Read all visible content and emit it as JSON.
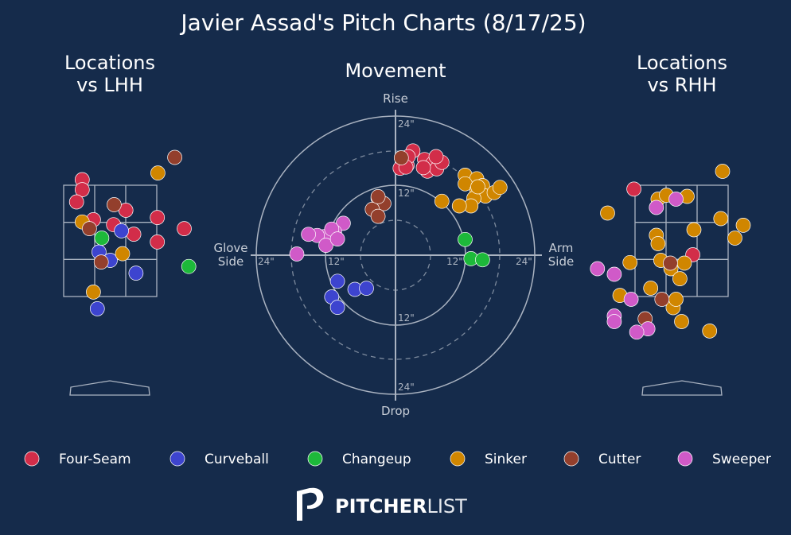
{
  "title": "Javier Assad's Pitch Charts (8/17/25)",
  "panels": {
    "lhh_title_line1": "Locations",
    "lhh_title_line2": "vs LHH",
    "movement_title": "Movement",
    "rhh_title_line1": "Locations",
    "rhh_title_line2": "vs RHH"
  },
  "movement_axes": {
    "top": "Rise",
    "bottom": "Drop",
    "left_line1": "Glove",
    "left_line2": "Side",
    "right_line1": "Arm",
    "right_line2": "Side",
    "ring_labels": [
      "24\"",
      "12\"",
      "12\"",
      "24\"",
      "24\"",
      "12\"",
      "12\"",
      "24\""
    ]
  },
  "brand": {
    "bold": "PITCHER",
    "light": "LIST"
  },
  "colors": {
    "background": "#152b4b",
    "Four-Seam": "#d22d49",
    "Curveball": "#3d44cf",
    "Changeup": "#1db93a",
    "Sinker": "#d08600",
    "Cutter": "#933f2c",
    "Sweeper": "#d05ac8"
  },
  "chart_data": [
    {
      "type": "scatter",
      "title": "Locations vs LHH",
      "units": "feet (catcher view)",
      "xlim": [
        -2.5,
        2.5
      ],
      "ylim": [
        -0.6,
        5.0
      ],
      "strike_zone": {
        "x": [
          -0.83,
          0.83
        ],
        "y": [
          1.5,
          3.5
        ]
      },
      "points": [
        {
          "pitch": "Four-Seam",
          "x": -0.5,
          "y": 3.6
        },
        {
          "pitch": "Four-Seam",
          "x": -0.5,
          "y": 3.42
        },
        {
          "pitch": "Four-Seam",
          "x": -0.6,
          "y": 3.2
        },
        {
          "pitch": "Four-Seam",
          "x": -0.3,
          "y": 2.88
        },
        {
          "pitch": "Four-Seam",
          "x": 0.28,
          "y": 3.05
        },
        {
          "pitch": "Four-Seam",
          "x": 0.06,
          "y": 2.79
        },
        {
          "pitch": "Four-Seam",
          "x": 0.42,
          "y": 2.62
        },
        {
          "pitch": "Four-Seam",
          "x": 0.84,
          "y": 2.92
        },
        {
          "pitch": "Four-Seam",
          "x": 0.84,
          "y": 2.48
        },
        {
          "pitch": "Four-Seam",
          "x": 1.32,
          "y": 2.72
        },
        {
          "pitch": "Curveball",
          "x": 0.2,
          "y": 2.68
        },
        {
          "pitch": "Curveball",
          "x": -0.2,
          "y": 2.3
        },
        {
          "pitch": "Curveball",
          "x": 0.0,
          "y": 2.15
        },
        {
          "pitch": "Curveball",
          "x": 0.46,
          "y": 1.92
        },
        {
          "pitch": "Curveball",
          "x": -0.23,
          "y": 1.28
        },
        {
          "pitch": "Changeup",
          "x": -0.15,
          "y": 2.55
        },
        {
          "pitch": "Changeup",
          "x": 1.4,
          "y": 2.04
        },
        {
          "pitch": "Sinker",
          "x": 0.85,
          "y": 3.72
        },
        {
          "pitch": "Sinker",
          "x": -0.5,
          "y": 2.84
        },
        {
          "pitch": "Sinker",
          "x": 0.22,
          "y": 2.27
        },
        {
          "pitch": "Sinker",
          "x": -0.3,
          "y": 1.58
        },
        {
          "pitch": "Cutter",
          "x": 1.15,
          "y": 4.0
        },
        {
          "pitch": "Cutter",
          "x": 0.07,
          "y": 3.15
        },
        {
          "pitch": "Cutter",
          "x": -0.37,
          "y": 2.72
        },
        {
          "pitch": "Cutter",
          "x": -0.16,
          "y": 2.12
        }
      ]
    },
    {
      "type": "scatter",
      "title": "Movement",
      "units": "inches",
      "xlim": [
        -24,
        24
      ],
      "ylim": [
        -24,
        24
      ],
      "rings": [
        6,
        12,
        18,
        24
      ],
      "points": [
        {
          "pitch": "Four-Seam",
          "x": 3,
          "y": 18
        },
        {
          "pitch": "Four-Seam",
          "x": 2,
          "y": 15.5
        },
        {
          "pitch": "Four-Seam",
          "x": 0.8,
          "y": 15
        },
        {
          "pitch": "Four-Seam",
          "x": 2.2,
          "y": 17
        },
        {
          "pitch": "Four-Seam",
          "x": 5,
          "y": 16.5
        },
        {
          "pitch": "Four-Seam",
          "x": 5.5,
          "y": 14.5
        },
        {
          "pitch": "Four-Seam",
          "x": 6.4,
          "y": 15.8
        },
        {
          "pitch": "Four-Seam",
          "x": 7.1,
          "y": 14.9
        },
        {
          "pitch": "Four-Seam",
          "x": 8,
          "y": 16
        },
        {
          "pitch": "Four-Seam",
          "x": 4.8,
          "y": 15.1
        },
        {
          "pitch": "Four-Seam",
          "x": 7,
          "y": 17
        },
        {
          "pitch": "Four-Seam",
          "x": 1.8,
          "y": 15.2
        },
        {
          "pitch": "Curveball",
          "x": -10,
          "y": -4.5
        },
        {
          "pitch": "Curveball",
          "x": -11,
          "y": -7.2
        },
        {
          "pitch": "Curveball",
          "x": -10,
          "y": -9
        },
        {
          "pitch": "Curveball",
          "x": -7,
          "y": -5.9
        },
        {
          "pitch": "Curveball",
          "x": -5,
          "y": -5.7
        },
        {
          "pitch": "Changeup",
          "x": 12,
          "y": 2.7
        },
        {
          "pitch": "Changeup",
          "x": 13,
          "y": -0.6
        },
        {
          "pitch": "Changeup",
          "x": 15,
          "y": -0.8
        },
        {
          "pitch": "Sinker",
          "x": 12,
          "y": 13.8
        },
        {
          "pitch": "Sinker",
          "x": 14,
          "y": 13.2
        },
        {
          "pitch": "Sinker",
          "x": 15,
          "y": 12
        },
        {
          "pitch": "Sinker",
          "x": 12,
          "y": 12.3
        },
        {
          "pitch": "Sinker",
          "x": 14,
          "y": 11.2
        },
        {
          "pitch": "Sinker",
          "x": 15.5,
          "y": 10.2
        },
        {
          "pitch": "Sinker",
          "x": 13.5,
          "y": 9.8
        },
        {
          "pitch": "Sinker",
          "x": 17,
          "y": 10.8
        },
        {
          "pitch": "Sinker",
          "x": 18,
          "y": 11.7
        },
        {
          "pitch": "Sinker",
          "x": 13,
          "y": 8.5
        },
        {
          "pitch": "Sinker",
          "x": 11,
          "y": 8.5
        },
        {
          "pitch": "Sinker",
          "x": 8,
          "y": 9.3
        },
        {
          "pitch": "Sinker",
          "x": 14.2,
          "y": 11.8
        },
        {
          "pitch": "Cutter",
          "x": 1,
          "y": 16.8
        },
        {
          "pitch": "Cutter",
          "x": -3,
          "y": 9.8
        },
        {
          "pitch": "Cutter",
          "x": -2,
          "y": 8.9
        },
        {
          "pitch": "Cutter",
          "x": -4,
          "y": 7.9
        },
        {
          "pitch": "Cutter",
          "x": -3,
          "y": 6.7
        },
        {
          "pitch": "Cutter",
          "x": -3,
          "y": 10.1
        },
        {
          "pitch": "Sweeper",
          "x": -9,
          "y": 5.5
        },
        {
          "pitch": "Sweeper",
          "x": -10.5,
          "y": 4
        },
        {
          "pitch": "Sweeper",
          "x": -11.4,
          "y": 3.5
        },
        {
          "pitch": "Sweeper",
          "x": -12.3,
          "y": 3.2
        },
        {
          "pitch": "Sweeper",
          "x": -13.5,
          "y": 3.4
        },
        {
          "pitch": "Sweeper",
          "x": -15,
          "y": 3.6
        },
        {
          "pitch": "Sweeper",
          "x": -11,
          "y": 4.5
        },
        {
          "pitch": "Sweeper",
          "x": -12,
          "y": 1.7
        },
        {
          "pitch": "Sweeper",
          "x": -10,
          "y": 2.8
        },
        {
          "pitch": "Sweeper",
          "x": -17,
          "y": 0.2
        }
      ]
    },
    {
      "type": "scatter",
      "title": "Locations vs RHH",
      "units": "feet (catcher view)",
      "xlim": [
        -2.5,
        2.5
      ],
      "ylim": [
        -0.6,
        5.0
      ],
      "strike_zone": {
        "x": [
          -0.83,
          0.83
        ],
        "y": [
          1.5,
          3.5
        ]
      },
      "points": [
        {
          "pitch": "Four-Seam",
          "x": -0.85,
          "y": 3.43
        },
        {
          "pitch": "Four-Seam",
          "x": 0.2,
          "y": 2.25
        },
        {
          "pitch": "Sinker",
          "x": 0.73,
          "y": 3.75
        },
        {
          "pitch": "Sinker",
          "x": -1.32,
          "y": 3.0
        },
        {
          "pitch": "Sinker",
          "x": -0.42,
          "y": 3.25
        },
        {
          "pitch": "Sinker",
          "x": -0.27,
          "y": 3.32
        },
        {
          "pitch": "Sinker",
          "x": 0.1,
          "y": 3.3
        },
        {
          "pitch": "Sinker",
          "x": 0.22,
          "y": 2.7
        },
        {
          "pitch": "Sinker",
          "x": 0.7,
          "y": 2.9
        },
        {
          "pitch": "Sinker",
          "x": 0.95,
          "y": 2.55
        },
        {
          "pitch": "Sinker",
          "x": 1.1,
          "y": 2.78
        },
        {
          "pitch": "Sinker",
          "x": -0.45,
          "y": 2.6
        },
        {
          "pitch": "Sinker",
          "x": -0.42,
          "y": 2.45
        },
        {
          "pitch": "Sinker",
          "x": -0.92,
          "y": 2.11
        },
        {
          "pitch": "Sinker",
          "x": -0.37,
          "y": 2.15
        },
        {
          "pitch": "Sinker",
          "x": -0.19,
          "y": 2.0
        },
        {
          "pitch": "Sinker",
          "x": 0.05,
          "y": 2.1
        },
        {
          "pitch": "Sinker",
          "x": -0.03,
          "y": 1.82
        },
        {
          "pitch": "Sinker",
          "x": -0.55,
          "y": 1.65
        },
        {
          "pitch": "Sinker",
          "x": -0.15,
          "y": 1.3
        },
        {
          "pitch": "Sinker",
          "x": -1.1,
          "y": 1.52
        },
        {
          "pitch": "Sinker",
          "x": -0.1,
          "y": 1.45
        },
        {
          "pitch": "Sinker",
          "x": 0.0,
          "y": 1.05
        },
        {
          "pitch": "Sinker",
          "x": 0.5,
          "y": 0.88
        },
        {
          "pitch": "Cutter",
          "x": -0.2,
          "y": 2.1
        },
        {
          "pitch": "Cutter",
          "x": -0.35,
          "y": 1.45
        },
        {
          "pitch": "Cutter",
          "x": -0.65,
          "y": 1.1
        },
        {
          "pitch": "Sweeper",
          "x": -0.45,
          "y": 3.1
        },
        {
          "pitch": "Sweeper",
          "x": -0.1,
          "y": 3.25
        },
        {
          "pitch": "Sweeper",
          "x": -1.5,
          "y": 2.0
        },
        {
          "pitch": "Sweeper",
          "x": -1.2,
          "y": 1.9
        },
        {
          "pitch": "Sweeper",
          "x": -0.9,
          "y": 1.45
        },
        {
          "pitch": "Sweeper",
          "x": -1.2,
          "y": 1.15
        },
        {
          "pitch": "Sweeper",
          "x": -1.2,
          "y": 1.05
        },
        {
          "pitch": "Sweeper",
          "x": -0.6,
          "y": 0.92
        },
        {
          "pitch": "Sweeper",
          "x": -0.8,
          "y": 0.86
        }
      ]
    }
  ],
  "legend": [
    {
      "label": "Four-Seam",
      "color": "#d22d49"
    },
    {
      "label": "Curveball",
      "color": "#3d44cf"
    },
    {
      "label": "Changeup",
      "color": "#1db93a"
    },
    {
      "label": "Sinker",
      "color": "#d08600"
    },
    {
      "label": "Cutter",
      "color": "#933f2c"
    },
    {
      "label": "Sweeper",
      "color": "#d05ac8"
    }
  ]
}
